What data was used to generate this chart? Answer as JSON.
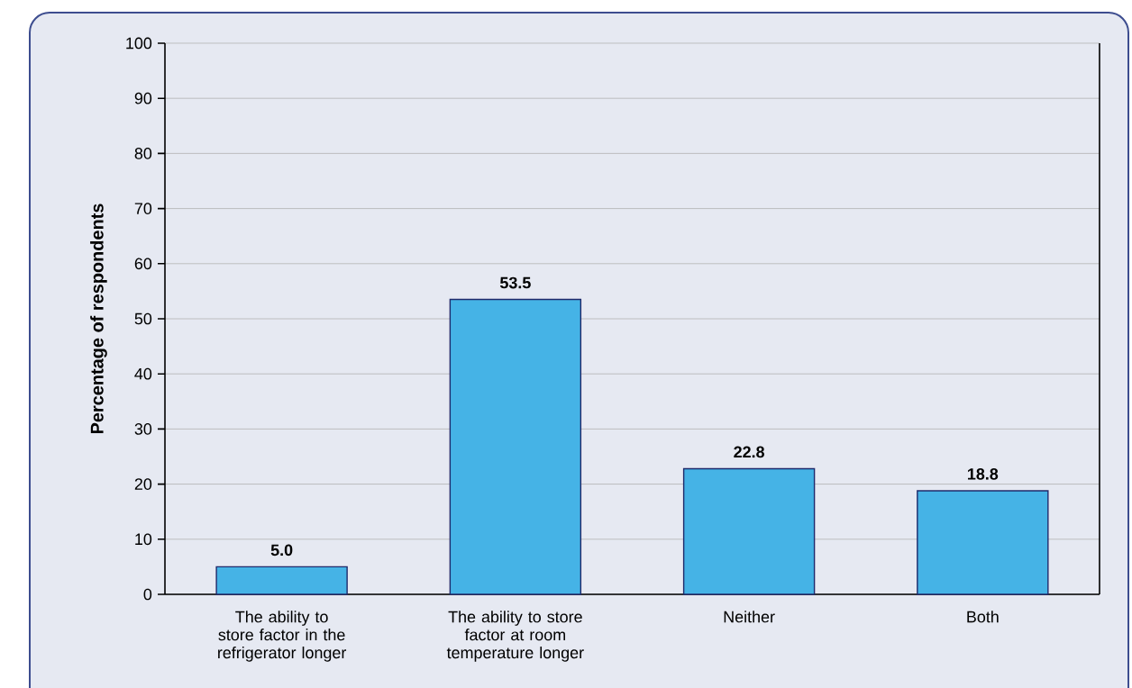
{
  "chart_data": {
    "type": "bar",
    "ylabel": "Percentage of respondents",
    "categories": [
      "The ability to store factor in the refrigerator longer",
      "The ability to store factor at room temperature longer",
      "Neither",
      "Both"
    ],
    "values": [
      5.0,
      53.5,
      22.8,
      18.8
    ],
    "value_labels": [
      "5.0",
      "53.5",
      "22.8",
      "18.8"
    ],
    "color": "#45b3e6",
    "ylim": [
      0,
      100
    ],
    "yticks": [
      0,
      10,
      20,
      30,
      40,
      50,
      60,
      70,
      80,
      90,
      100
    ],
    "grid": "y"
  }
}
